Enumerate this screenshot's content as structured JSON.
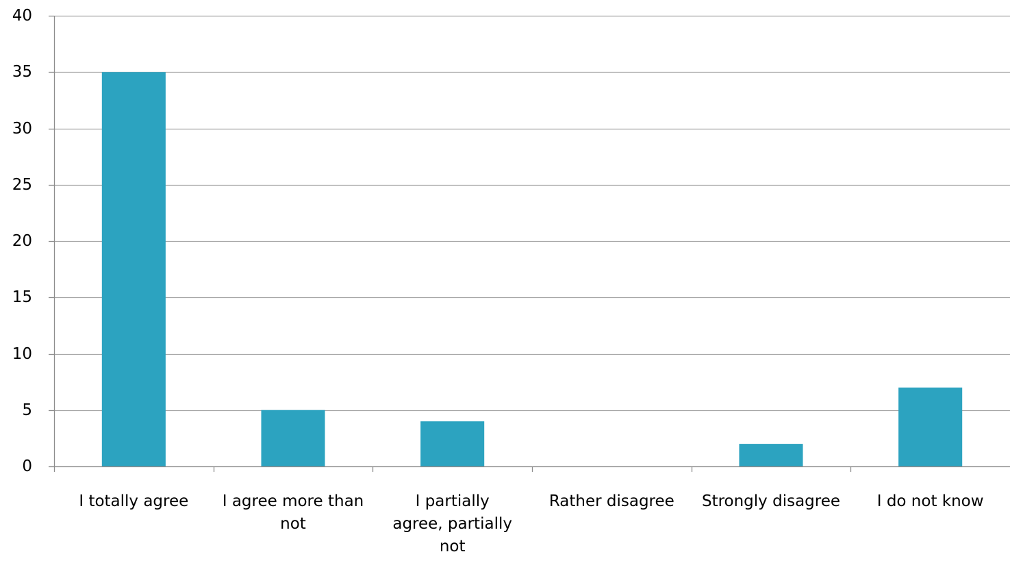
{
  "chart_data": {
    "type": "bar",
    "categories": [
      [
        "I totally agree"
      ],
      [
        "I agree more than",
        "not"
      ],
      [
        "I partially",
        "agree, partially",
        "not"
      ],
      [
        "Rather disagree"
      ],
      [
        "Strongly disagree"
      ],
      [
        "I do not know"
      ]
    ],
    "values": [
      35,
      5,
      4,
      0,
      2,
      7
    ],
    "ylim": [
      0,
      40
    ],
    "yticks": [
      "0",
      "5",
      "10",
      "15",
      "20",
      "25",
      "30",
      "35",
      "40"
    ],
    "title": "",
    "xlabel": "",
    "ylabel": "",
    "grid": true,
    "legend": "none",
    "colors": {
      "bar": "#2CA3C0",
      "grid": "#A6A6A6",
      "axis": "#8C8C8C",
      "text": "#000000"
    }
  }
}
